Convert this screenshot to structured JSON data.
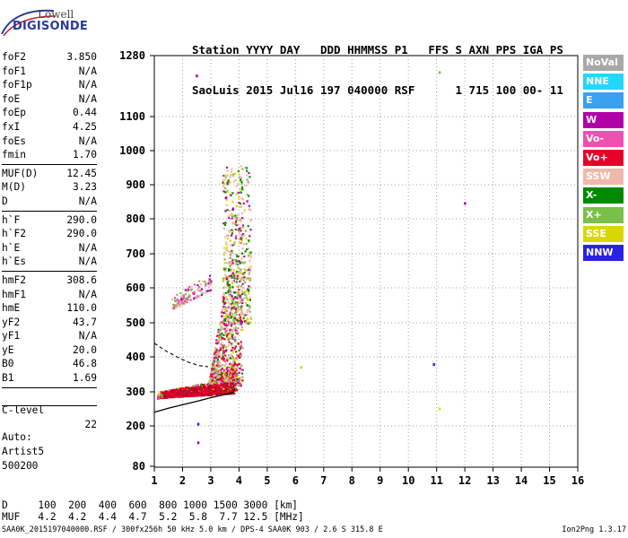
{
  "logo": {
    "line1": "Lowell",
    "line2": "DIGISONDE"
  },
  "header": {
    "line1": "Station YYYY DAY   DDD HHMMSS P1   FFS S AXN PPS IGA PS",
    "line2": "SaoLuis 2015 Jul16 197 040000 RSF      1 715 100 00- 11"
  },
  "params": {
    "group1": [
      {
        "label": "foF2",
        "value": "3.850"
      },
      {
        "label": "foF1",
        "value": "N/A"
      },
      {
        "label": "foF1p",
        "value": "N/A"
      },
      {
        "label": "foE",
        "value": "N/A"
      },
      {
        "label": "foEp",
        "value": "0.44"
      },
      {
        "label": "fxI",
        "value": "4.25"
      },
      {
        "label": "foEs",
        "value": "N/A"
      },
      {
        "label": "fmin",
        "value": "1.70"
      }
    ],
    "group2": [
      {
        "label": "MUF(D)",
        "value": "12.45"
      },
      {
        "label": "M(D)",
        "value": "3.23"
      },
      {
        "label": "D",
        "value": "N/A"
      }
    ],
    "group3": [
      {
        "label": "h`F",
        "value": "290.0"
      },
      {
        "label": "h`F2",
        "value": "290.0"
      },
      {
        "label": "h`E",
        "value": "N/A"
      },
      {
        "label": "h`Es",
        "value": "N/A"
      }
    ],
    "group4": [
      {
        "label": "hmF2",
        "value": "308.6"
      },
      {
        "label": "hmF1",
        "value": "N/A"
      },
      {
        "label": "hmE",
        "value": "110.0"
      },
      {
        "label": "yF2",
        "value": "43.7"
      },
      {
        "label": "yF1",
        "value": "N/A"
      },
      {
        "label": "yE",
        "value": "20.0"
      },
      {
        "label": "B0",
        "value": "46.8"
      },
      {
        "label": "B1",
        "value": "1.69"
      }
    ],
    "clevel": {
      "label": "C-level",
      "value": "22"
    }
  },
  "auto": {
    "line1": "Auto:",
    "line2": "Artist5",
    "line3": "500200"
  },
  "legend": [
    {
      "label": "NoVal",
      "color": "#a8a8a8"
    },
    {
      "label": "NNE",
      "color": "#22d8f8"
    },
    {
      "label": "E",
      "color": "#3aa0f0"
    },
    {
      "label": "W",
      "color": "#b000a8"
    },
    {
      "label": "Vo-",
      "color": "#f050b0"
    },
    {
      "label": "Vo+",
      "color": "#e8002a"
    },
    {
      "label": "SSW",
      "color": "#f0b8a8"
    },
    {
      "label": "X-",
      "color": "#008a00"
    },
    {
      "label": "X+",
      "color": "#78c048"
    },
    {
      "label": "SSE",
      "color": "#d8d800"
    },
    {
      "label": "NNW",
      "color": "#2a22e0"
    }
  ],
  "muf_table": {
    "line1": "D     100  200  400  600  800 1000 1500 3000 [km]",
    "line2": "MUF   4.2  4.2  4.4  4.7  5.2  5.8  7.7 12.5 [MHz]"
  },
  "footer": {
    "left": "SAA0K_2015197040000.RSF / 300fx256h 50 kHz 5.0 km / DPS-4 SAA0K 903 / 2.6 S 315.8 E",
    "right": "Ion2Png 1.3.17"
  },
  "chart_data": {
    "type": "scatter",
    "xlabel": "",
    "ylabel": "",
    "x_ticks": [
      "1",
      "2",
      "3",
      "4",
      "5",
      "6",
      "7",
      "8",
      "9",
      "10",
      "11",
      "12",
      "13",
      "14",
      "15",
      "16"
    ],
    "y_ticks": [
      "80",
      "200",
      "300",
      "400",
      "500",
      "600",
      "700",
      "800",
      "900",
      "1000",
      "1100",
      "1280"
    ],
    "xlim": [
      1,
      16
    ],
    "ylim": [
      80,
      1280
    ],
    "grid": true,
    "profile_solid": [
      [
        1.0,
        240
      ],
      [
        1.5,
        252
      ],
      [
        2.0,
        262
      ],
      [
        2.5,
        272
      ],
      [
        3.0,
        283
      ],
      [
        3.5,
        292
      ],
      [
        3.8,
        298
      ],
      [
        3.85,
        310
      ]
    ],
    "profile_dashed": [
      [
        1.0,
        440
      ],
      [
        1.4,
        418
      ],
      [
        1.8,
        400
      ],
      [
        2.2,
        385
      ],
      [
        2.6,
        375
      ],
      [
        2.9,
        372
      ]
    ],
    "isolated_points": [
      {
        "x": 11.1,
        "y": 1230,
        "color": "#78c048"
      },
      {
        "x": 2.5,
        "y": 1220,
        "color": "#b000a8"
      },
      {
        "x": 12.0,
        "y": 845,
        "color": "#b000a8"
      },
      {
        "x": 10.9,
        "y": 378,
        "color": "#2a22e0"
      },
      {
        "x": 6.2,
        "y": 370,
        "color": "#d8d800"
      },
      {
        "x": 11.1,
        "y": 250,
        "color": "#d8d800"
      },
      {
        "x": 2.55,
        "y": 205,
        "color": "#2a22e0"
      },
      {
        "x": 2.55,
        "y": 150,
        "color": "#b000a8"
      }
    ]
  }
}
